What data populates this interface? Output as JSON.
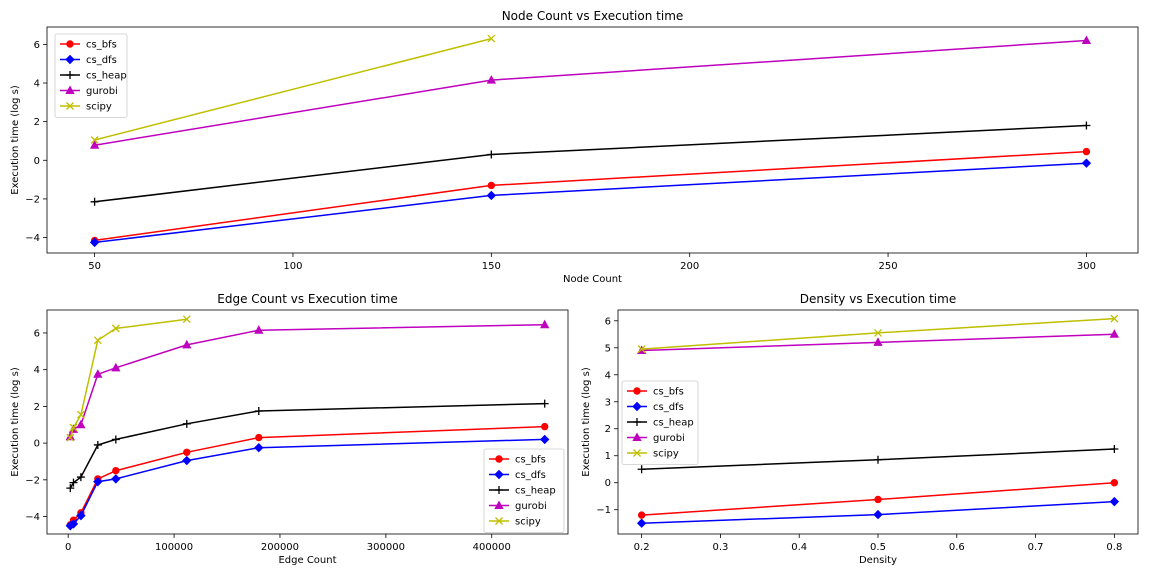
{
  "chart_data": [
    {
      "type": "line",
      "title": "Node Count vs Execution time",
      "xlabel": "Node Count",
      "ylabel": "Execution time (log s)",
      "xlim": [
        38,
        313
      ],
      "ylim": [
        -4.8,
        6.9
      ],
      "xticks": [
        50,
        100,
        150,
        200,
        250,
        300
      ],
      "yticks": [
        -4,
        -2,
        0,
        2,
        4,
        6
      ],
      "legend_position": "upper left",
      "series": [
        {
          "name": "cs_bfs",
          "color": "#ff0000",
          "marker": "circle",
          "x": [
            50,
            150,
            300
          ],
          "y": [
            -4.15,
            -1.3,
            0.45
          ]
        },
        {
          "name": "cs_dfs",
          "color": "#0000ff",
          "marker": "diamond",
          "x": [
            50,
            150,
            300
          ],
          "y": [
            -4.25,
            -1.82,
            -0.15
          ]
        },
        {
          "name": "cs_heap",
          "color": "#000000",
          "marker": "plus",
          "x": [
            50,
            150,
            300
          ],
          "y": [
            -2.15,
            0.3,
            1.8
          ]
        },
        {
          "name": "gurobi",
          "color": "#bf00bf",
          "marker": "triangle",
          "x": [
            50,
            150,
            300
          ],
          "y": [
            0.78,
            4.15,
            6.2
          ]
        },
        {
          "name": "scipy",
          "color": "#bfbf00",
          "marker": "x",
          "x": [
            50,
            150
          ],
          "y": [
            1.05,
            6.3
          ]
        }
      ]
    },
    {
      "type": "line",
      "title": "Edge Count vs Execution time",
      "xlabel": "Edge Count",
      "ylabel": "Execution time (log s)",
      "xlim": [
        -20000,
        472000
      ],
      "ylim": [
        -4.95,
        7.25
      ],
      "xticks": [
        0,
        100000,
        200000,
        300000,
        400000
      ],
      "xtick_labels": [
        "0",
        "100000",
        "200000",
        "300000",
        "400000"
      ],
      "yticks": [
        -4,
        -2,
        0,
        2,
        4,
        6
      ],
      "legend_position": "lower right",
      "series": [
        {
          "name": "cs_bfs",
          "color": "#ff0000",
          "marker": "circle",
          "x": [
            2000,
            5000,
            12000,
            28000,
            45000,
            112000,
            180000,
            450000
          ],
          "y": [
            -4.45,
            -4.2,
            -3.8,
            -1.95,
            -1.5,
            -0.5,
            0.3,
            0.9
          ]
        },
        {
          "name": "cs_dfs",
          "color": "#0000ff",
          "marker": "diamond",
          "x": [
            2000,
            5000,
            12000,
            28000,
            45000,
            112000,
            180000,
            450000
          ],
          "y": [
            -4.5,
            -4.4,
            -3.95,
            -2.1,
            -1.95,
            -0.95,
            -0.25,
            0.2
          ]
        },
        {
          "name": "cs_heap",
          "color": "#000000",
          "marker": "plus",
          "x": [
            2000,
            5000,
            12000,
            28000,
            45000,
            112000,
            180000,
            450000
          ],
          "y": [
            -2.45,
            -2.15,
            -1.85,
            -0.1,
            0.2,
            1.05,
            1.75,
            2.15
          ]
        },
        {
          "name": "gurobi",
          "color": "#bf00bf",
          "marker": "triangle",
          "x": [
            2000,
            5000,
            12000,
            28000,
            45000,
            112000,
            180000,
            450000
          ],
          "y": [
            0.35,
            0.75,
            1.0,
            3.75,
            4.1,
            5.35,
            6.15,
            6.45
          ]
        },
        {
          "name": "scipy",
          "color": "#bfbf00",
          "marker": "x",
          "x": [
            2000,
            5000,
            12000,
            28000,
            45000,
            112000
          ],
          "y": [
            0.3,
            0.85,
            1.55,
            5.6,
            6.25,
            6.75
          ]
        }
      ]
    },
    {
      "type": "line",
      "title": "Density vs Execution time",
      "xlabel": "Density",
      "ylabel": "Execution time (log s)",
      "xlim": [
        0.17,
        0.83
      ],
      "ylim": [
        -1.9,
        6.4
      ],
      "xticks": [
        0.2,
        0.3,
        0.4,
        0.5,
        0.6,
        0.7,
        0.8
      ],
      "xtick_labels": [
        "0.2",
        "0.3",
        "0.4",
        "0.5",
        "0.6",
        "0.7",
        "0.8"
      ],
      "yticks": [
        -1,
        0,
        1,
        2,
        3,
        4,
        5,
        6
      ],
      "legend_position": "center left",
      "series": [
        {
          "name": "cs_bfs",
          "color": "#ff0000",
          "marker": "circle",
          "x": [
            0.2,
            0.5,
            0.8
          ],
          "y": [
            -1.2,
            -0.62,
            0.0
          ]
        },
        {
          "name": "cs_dfs",
          "color": "#0000ff",
          "marker": "diamond",
          "x": [
            0.2,
            0.5,
            0.8
          ],
          "y": [
            -1.5,
            -1.18,
            -0.7
          ]
        },
        {
          "name": "cs_heap",
          "color": "#000000",
          "marker": "plus",
          "x": [
            0.2,
            0.5,
            0.8
          ],
          "y": [
            0.5,
            0.85,
            1.25
          ]
        },
        {
          "name": "gurobi",
          "color": "#bf00bf",
          "marker": "triangle",
          "x": [
            0.2,
            0.5,
            0.8
          ],
          "y": [
            4.9,
            5.2,
            5.5
          ]
        },
        {
          "name": "scipy",
          "color": "#bfbf00",
          "marker": "x",
          "x": [
            0.2,
            0.5,
            0.8
          ],
          "y": [
            4.95,
            5.55,
            6.08
          ]
        }
      ]
    }
  ]
}
